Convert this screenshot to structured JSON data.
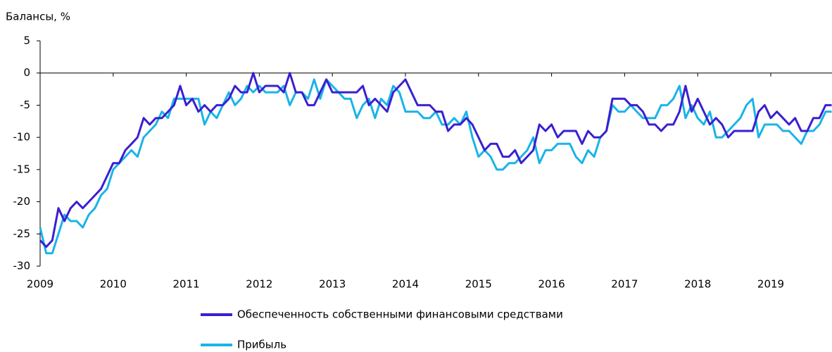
{
  "chart_data": {
    "type": "line",
    "y_label": "Балансы, %",
    "categories": [
      "2009",
      null,
      null,
      null,
      null,
      null,
      null,
      null,
      null,
      null,
      null,
      null,
      "2010",
      null,
      null,
      null,
      null,
      null,
      null,
      null,
      null,
      null,
      null,
      null,
      "2011",
      null,
      null,
      null,
      null,
      null,
      null,
      null,
      null,
      null,
      null,
      null,
      "2012",
      null,
      null,
      null,
      null,
      null,
      null,
      null,
      null,
      null,
      null,
      null,
      "2013",
      null,
      null,
      null,
      null,
      null,
      null,
      null,
      null,
      null,
      null,
      null,
      "2014",
      null,
      null,
      null,
      null,
      null,
      null,
      null,
      null,
      null,
      null,
      null,
      "2015",
      null,
      null,
      null,
      null,
      null,
      null,
      null,
      null,
      null,
      null,
      null,
      "2016",
      null,
      null,
      null,
      null,
      null,
      null,
      null,
      null,
      null,
      null,
      null,
      "2017",
      null,
      null,
      null,
      null,
      null,
      null,
      null,
      null,
      null,
      null,
      null,
      "2018",
      null,
      null,
      null,
      null,
      null,
      null,
      null,
      null,
      null,
      null,
      null,
      "2019",
      null,
      null,
      null,
      null,
      null,
      null,
      null,
      null,
      null,
      null
    ],
    "series": [
      {
        "name": "Обеспеченность собственными финансовыми средствами",
        "color": "#3a1fd0",
        "values": [
          -26,
          -27,
          -26,
          -21,
          -23,
          -21,
          -20,
          -21,
          -20,
          -19,
          -18,
          -16,
          -14,
          -14,
          -12,
          -11,
          -10,
          -7,
          -8,
          -7,
          -7,
          -6,
          -5,
          -2,
          -5,
          -4,
          -6,
          -5,
          -6,
          -5,
          -5,
          -4,
          -2,
          -3,
          -3,
          0,
          -3,
          -2,
          -2,
          -2,
          -3,
          0,
          -3,
          -3,
          -5,
          -5,
          -3,
          -1,
          -3,
          -3,
          -3,
          -3,
          -3,
          -2,
          -5,
          -4,
          -5,
          -6,
          -3,
          -2,
          -1,
          -3,
          -5,
          -5,
          -5,
          -6,
          -6,
          -9,
          -8,
          -8,
          -7,
          -8,
          -10,
          -12,
          -11,
          -11,
          -13,
          -13,
          -12,
          -14,
          -13,
          -12,
          -8,
          -9,
          -8,
          -10,
          -9,
          -9,
          -9,
          -11,
          -9,
          -10,
          -10,
          -9,
          -4,
          -4,
          -4,
          -5,
          -5,
          -6,
          -8,
          -8,
          -9,
          -8,
          -8,
          -6,
          -2,
          -6,
          -4,
          -6,
          -8,
          -7,
          -8,
          -10,
          -9,
          -9,
          -9,
          -9,
          -6,
          -5,
          -7,
          -6,
          -7,
          -8,
          -7,
          -9,
          -9,
          -7,
          -7,
          -5,
          -5
        ]
      },
      {
        "name": "Прибыль",
        "color": "#19b4e8",
        "values": [
          -24,
          -28,
          -28,
          -25,
          -22,
          -23,
          -23,
          -24,
          -22,
          -21,
          -19,
          -18,
          -15,
          -14,
          -13,
          -12,
          -13,
          -10,
          -9,
          -8,
          -6,
          -7,
          -4,
          -4,
          -4,
          -4,
          -4,
          -8,
          -6,
          -7,
          -5,
          -3,
          -5,
          -4,
          -2,
          -3,
          -2,
          -3,
          -3,
          -3,
          -2,
          -5,
          -3,
          -3,
          -4,
          -1,
          -4,
          -1,
          -2,
          -3,
          -4,
          -4,
          -7,
          -5,
          -4,
          -7,
          -4,
          -5,
          -2,
          -3,
          -6,
          -6,
          -6,
          -7,
          -7,
          -6,
          -8,
          -8,
          -7,
          -8,
          -6,
          -10,
          -13,
          -12,
          -13,
          -15,
          -15,
          -14,
          -14,
          -13,
          -12,
          -10,
          -14,
          -12,
          -12,
          -11,
          -11,
          -11,
          -13,
          -14,
          -12,
          -13,
          -10,
          -9,
          -5,
          -6,
          -6,
          -5,
          -6,
          -7,
          -7,
          -7,
          -5,
          -5,
          -4,
          -2,
          -7,
          -5,
          -7,
          -8,
          -6,
          -10,
          -10,
          -9,
          -8,
          -7,
          -5,
          -4,
          -10,
          -8,
          -8,
          -8,
          -9,
          -9,
          -10,
          -11,
          -9,
          -9,
          -8,
          -6,
          -6
        ]
      }
    ],
    "ylim": [
      -30,
      5
    ],
    "yticks": [
      5,
      0,
      -5,
      -10,
      -15,
      -20,
      -25,
      -30
    ]
  }
}
